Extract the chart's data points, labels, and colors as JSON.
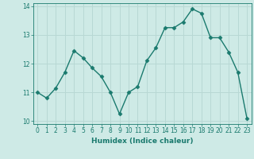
{
  "x": [
    0,
    1,
    2,
    3,
    4,
    5,
    6,
    7,
    8,
    9,
    10,
    11,
    12,
    13,
    14,
    15,
    16,
    17,
    18,
    19,
    20,
    21,
    22,
    23
  ],
  "y": [
    11.0,
    10.8,
    11.15,
    11.7,
    12.45,
    12.2,
    11.85,
    11.55,
    11.0,
    10.25,
    11.0,
    11.2,
    12.1,
    12.55,
    13.25,
    13.25,
    13.45,
    13.9,
    13.75,
    12.9,
    12.9,
    12.4,
    11.7,
    10.1
  ],
  "line_color": "#1a7a6e",
  "marker": "D",
  "marker_size": 2.5,
  "bg_color": "#ceeae6",
  "grid_color": "#b8d8d4",
  "xlabel": "Humidex (Indice chaleur)",
  "ylim": [
    9.9,
    14.1
  ],
  "xlim": [
    -0.5,
    23.5
  ],
  "yticks": [
    10,
    11,
    12,
    13,
    14
  ],
  "xticks": [
    0,
    1,
    2,
    3,
    4,
    5,
    6,
    7,
    8,
    9,
    10,
    11,
    12,
    13,
    14,
    15,
    16,
    17,
    18,
    19,
    20,
    21,
    22,
    23
  ],
  "tick_color": "#1a7a6e",
  "label_color": "#1a7a6e",
  "line_width": 1.0,
  "tick_fontsize": 5.5,
  "xlabel_fontsize": 6.5
}
